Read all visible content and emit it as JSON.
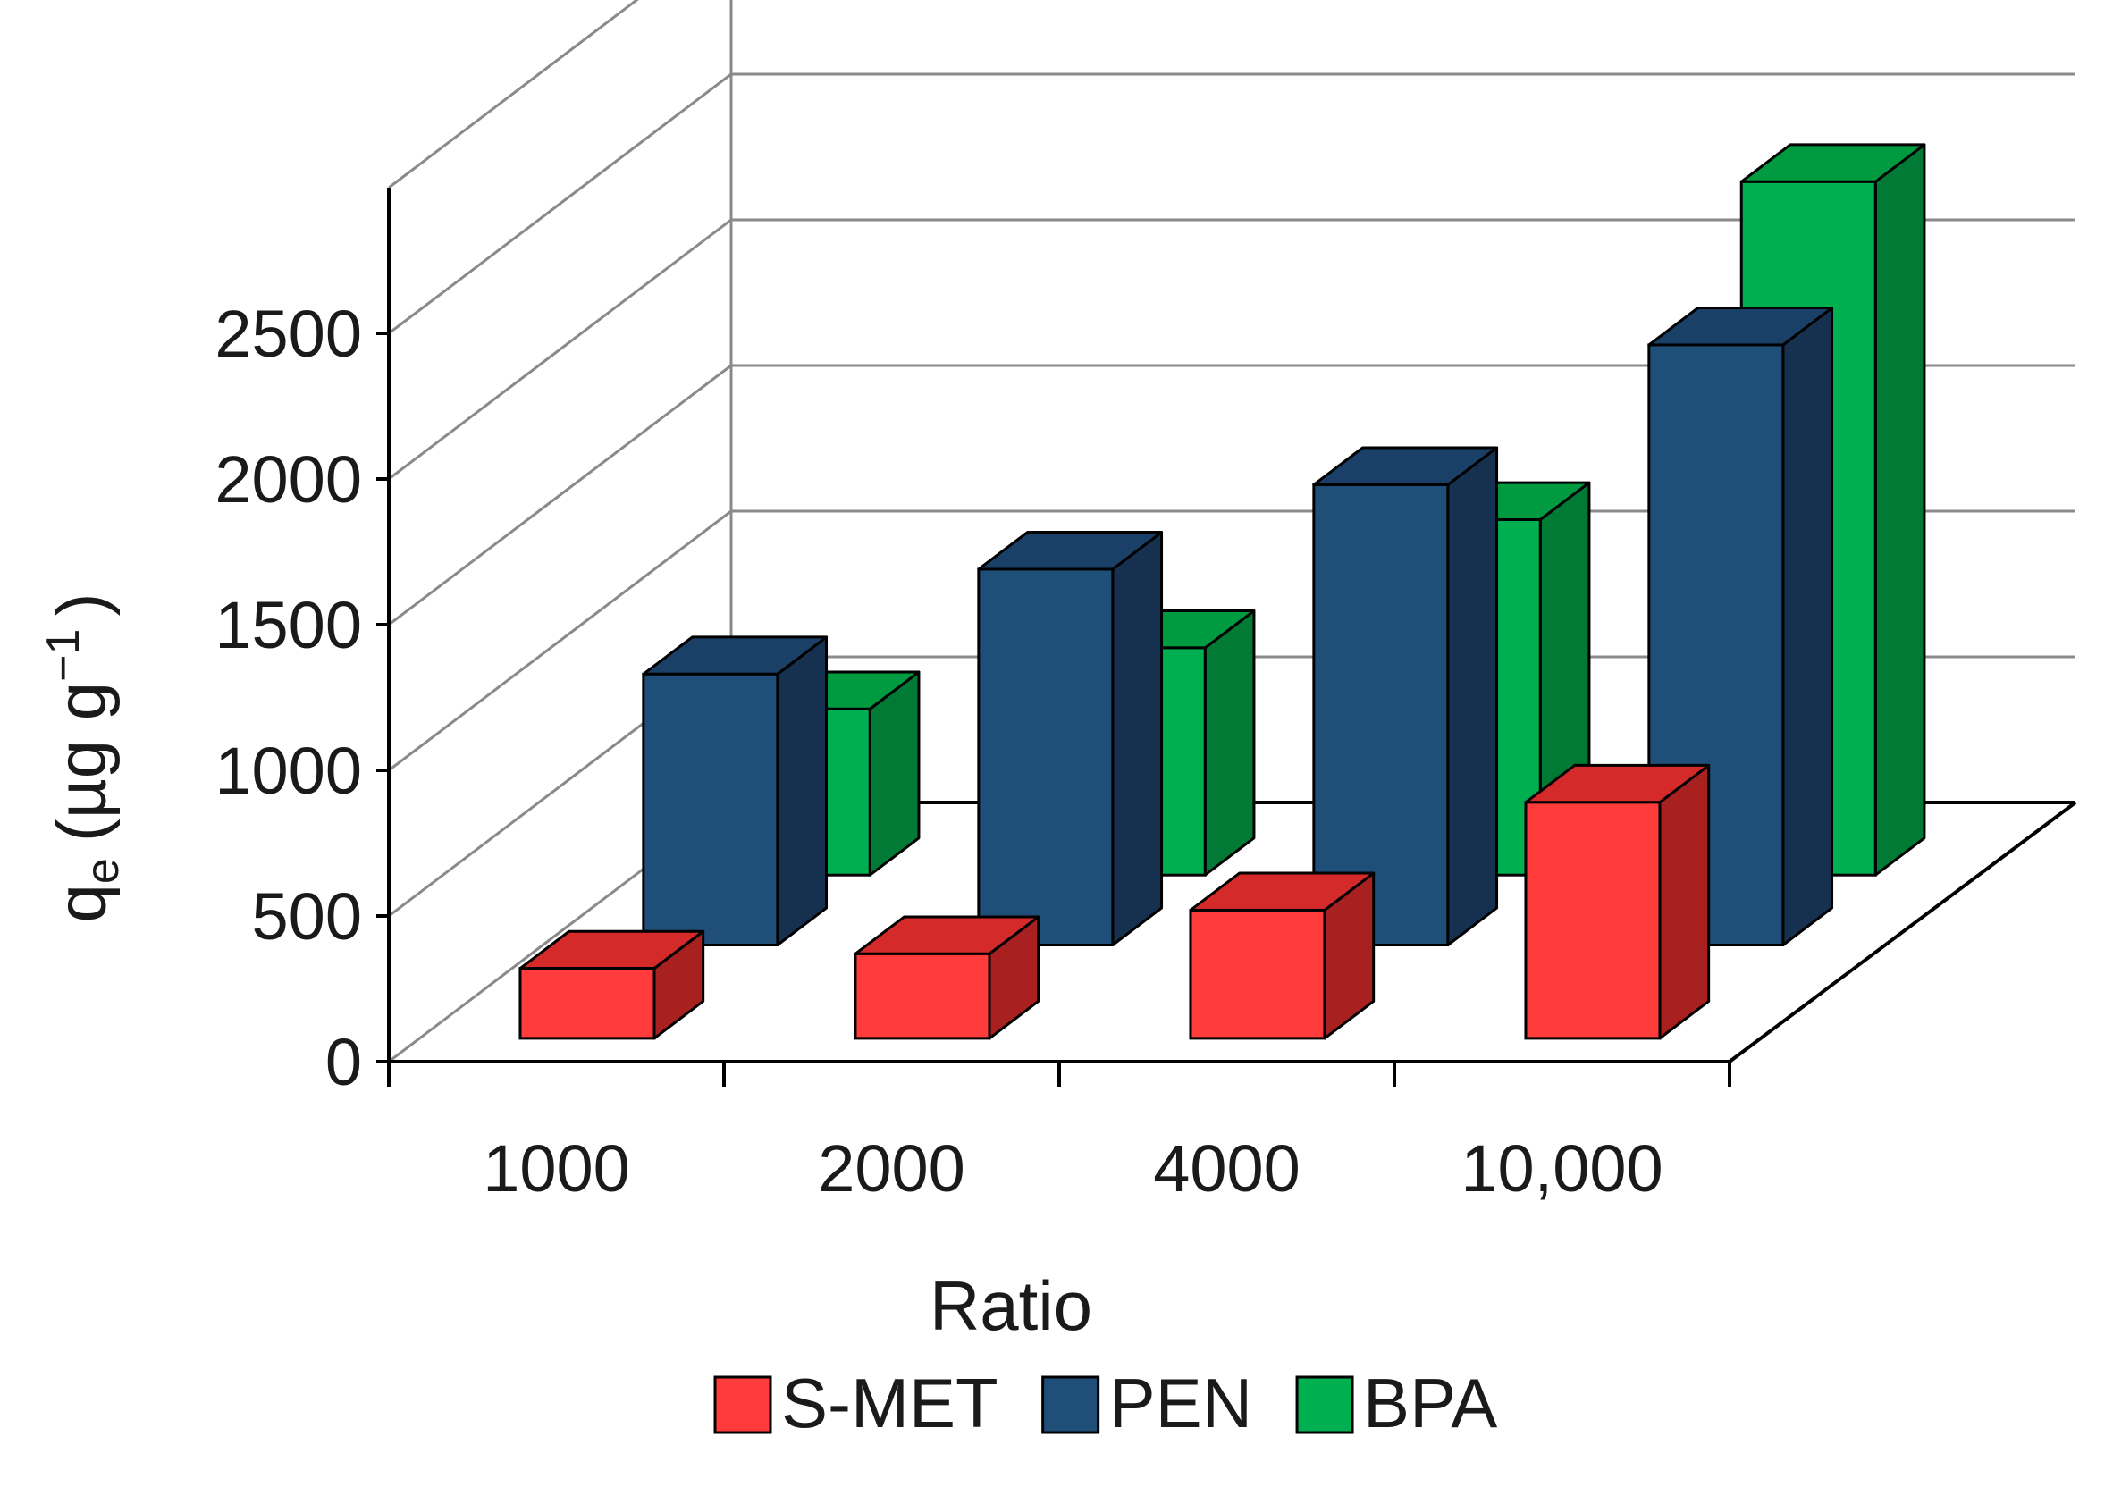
{
  "chart_data": {
    "type": "bar",
    "variant": "3d-grouped",
    "title": "",
    "xlabel": "Ratio",
    "ylabel": {
      "base": "q",
      "subscript": "e",
      "units": "(µg g",
      "superscript": "−1",
      "close": ")"
    },
    "categories": [
      "1000",
      "2000",
      "4000",
      "10,000"
    ],
    "ylim": [
      0,
      2500
    ],
    "yticks": [
      0,
      500,
      1000,
      1500,
      2000,
      2500
    ],
    "grid": true,
    "legend_position": "bottom",
    "series": [
      {
        "name": "S-MET",
        "color": "#ff3b3b",
        "top_color": "#d42a2a",
        "side_color": "#a82020",
        "values": [
          240,
          290,
          440,
          810
        ]
      },
      {
        "name": "PEN",
        "color": "#1f4e79",
        "top_color": "#1b4068",
        "side_color": "#16304f",
        "values": [
          930,
          1290,
          1580,
          2060
        ]
      },
      {
        "name": "BPA",
        "color": "#00b050",
        "top_color": "#009a40",
        "side_color": "#007a34",
        "values": [
          570,
          780,
          1220,
          2380
        ]
      }
    ]
  }
}
